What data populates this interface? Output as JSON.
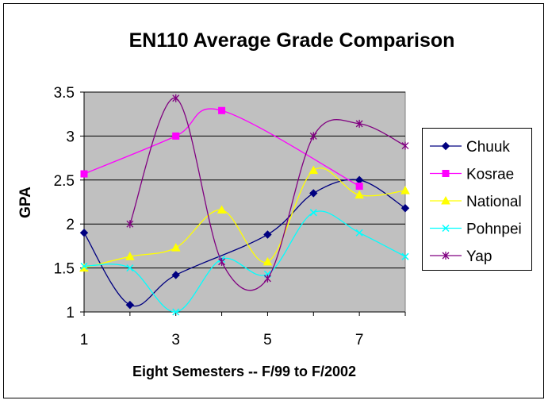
{
  "chart_data": {
    "type": "line",
    "title": "EN110 Average Grade Comparison",
    "xlabel": "Eight Semesters -- F/99 to F/2002",
    "ylabel": "GPA",
    "x": [
      1,
      2,
      3,
      4,
      5,
      6,
      7,
      8
    ],
    "x_ticks": [
      1,
      3,
      5,
      7
    ],
    "x_tick_labels": [
      "1",
      "3",
      "5",
      "7"
    ],
    "xlim": [
      1,
      8
    ],
    "y_ticks": [
      1,
      1.5,
      2,
      2.5,
      3,
      3.5
    ],
    "y_tick_labels": [
      "1",
      "1.5",
      "2",
      "2.5",
      "3",
      "3.5"
    ],
    "ylim": [
      1,
      3.5
    ],
    "grid": "horizontal",
    "smoothed": true,
    "plot_background": "#c0c0c0",
    "legend_position": "right",
    "series": [
      {
        "name": "Chuuk",
        "color": "#000080",
        "marker": "diamond",
        "values": [
          1.9,
          1.08,
          1.42,
          null,
          1.88,
          2.35,
          2.5,
          2.18
        ]
      },
      {
        "name": "Kosrae",
        "color": "#ff00ff",
        "marker": "square",
        "values": [
          2.57,
          null,
          3.0,
          3.29,
          null,
          null,
          2.43,
          null
        ]
      },
      {
        "name": "National",
        "color": "#ffff00",
        "marker": "triangle",
        "values": [
          1.5,
          1.63,
          1.73,
          2.16,
          1.57,
          2.61,
          2.33,
          2.38
        ]
      },
      {
        "name": "Pohnpei",
        "color": "#00ffff",
        "marker": "x",
        "values": [
          1.52,
          1.5,
          1.0,
          1.6,
          1.43,
          2.13,
          1.9,
          1.63
        ]
      },
      {
        "name": "Yap",
        "color": "#800080",
        "marker": "star",
        "values": [
          null,
          2.0,
          3.43,
          1.57,
          1.38,
          3.0,
          3.14,
          2.89
        ]
      }
    ]
  }
}
